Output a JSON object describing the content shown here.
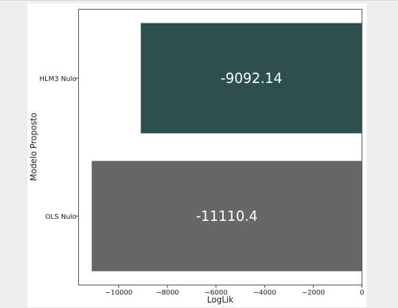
{
  "chart_data": {
    "type": "bar",
    "orientation": "horizontal",
    "categories": [
      "HLM3 Nulo",
      "OLS Nulo"
    ],
    "values": [
      -9092.14,
      -11110.4
    ],
    "data_labels": [
      "-9092.14",
      "-11110.4"
    ],
    "bar_colors": [
      "#2f4f4f",
      "#696667"
    ],
    "xlabel": "LogLik",
    "ylabel": "Modelo Proposto",
    "xlim": [
      -11650,
      0
    ],
    "xticks": [
      -10000,
      -8000,
      -6000,
      -4000,
      -2000,
      0
    ],
    "xtick_labels": [
      "−10000",
      "−8000",
      "−6000",
      "−4000",
      "−2000",
      "0"
    ],
    "grid": false,
    "legend": "none"
  }
}
